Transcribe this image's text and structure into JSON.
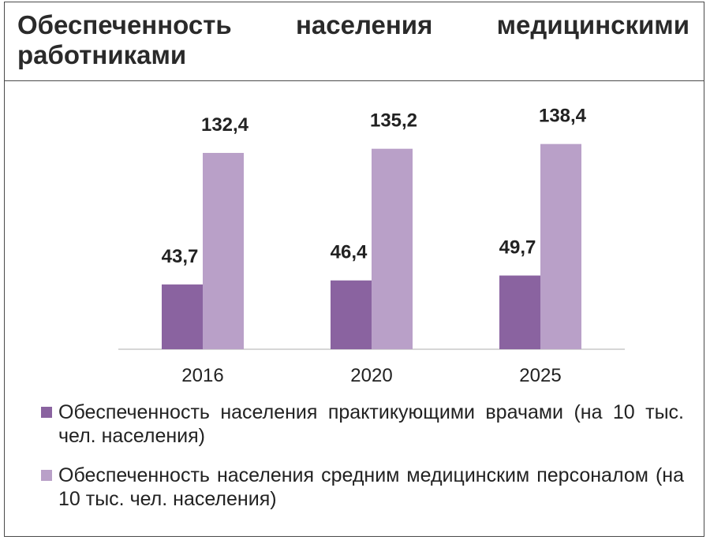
{
  "title": "Обеспеченность населения медицинскими работниками",
  "colors": {
    "series_1": "#8a63a0",
    "series_2": "#b9a0c8",
    "axis": "#c8c8c8"
  },
  "chart_data": {
    "type": "bar",
    "title": "Обеспеченность населения медицинскими работниками",
    "categories": [
      "2016",
      "2020",
      "2025"
    ],
    "series": [
      {
        "name": "Обеспеченность населения практикующими врачами (на 10 тыс. чел. населения)",
        "values": [
          43.7,
          46.4,
          49.7
        ],
        "labels": [
          "43,7",
          "46,4",
          "49,7"
        ]
      },
      {
        "name": "Обеспеченность населения средним медицинским персоналом (на 10 тыс. чел. населения)",
        "values": [
          132.4,
          135.2,
          138.4
        ],
        "labels": [
          "132,4",
          "135,2",
          "138,4"
        ]
      }
    ],
    "ylim": [
      0,
      168
    ],
    "grid": false,
    "legend_position": "bottom"
  }
}
